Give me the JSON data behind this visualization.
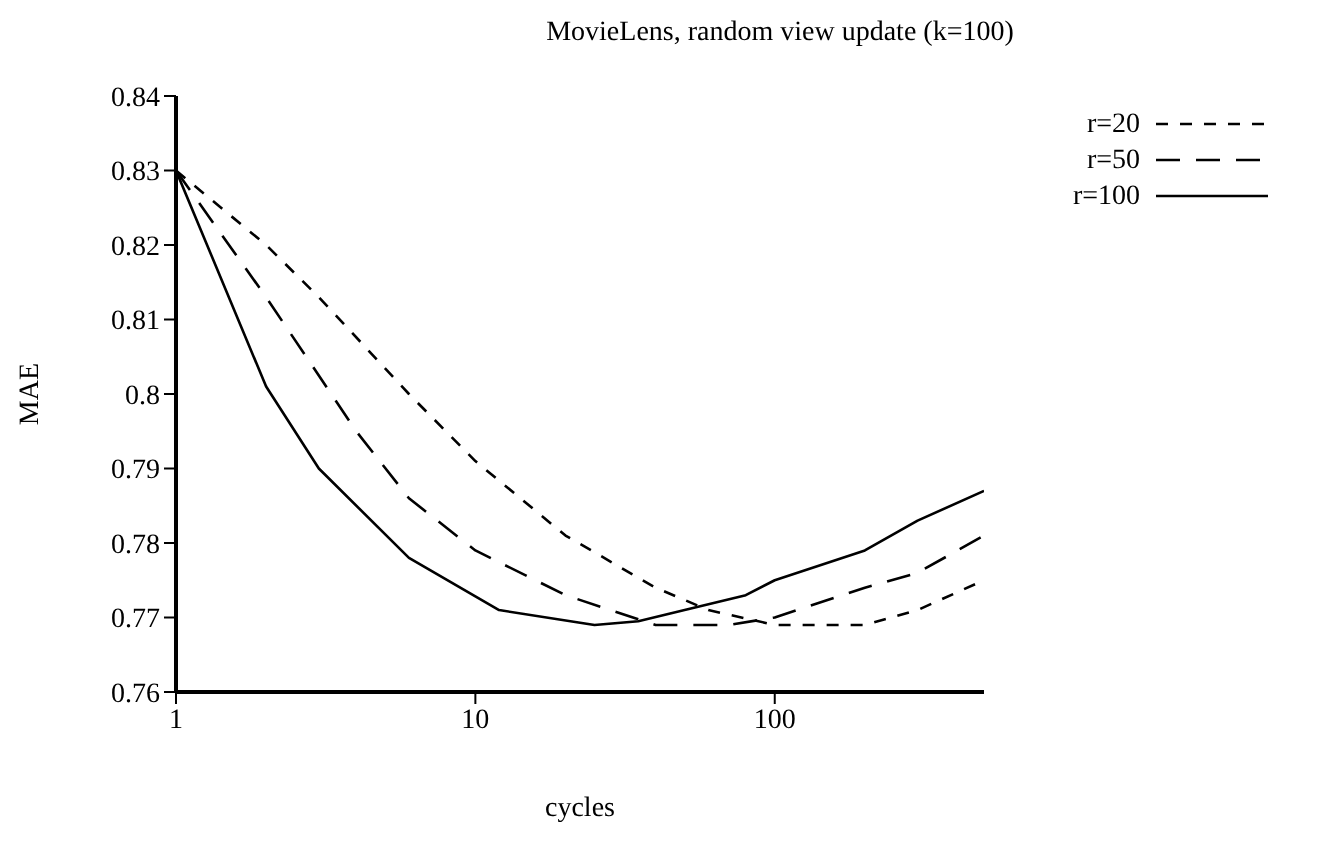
{
  "chart_data": {
    "type": "line",
    "title": "MovieLens, random view update (k=100)",
    "xlabel": "cycles",
    "ylabel": "MAE",
    "log": "x",
    "xlim": [
      1,
      500
    ],
    "xticks": [
      1,
      10,
      100
    ],
    "ylim": [
      0.76,
      0.84
    ],
    "yticks": [
      0.76,
      0.77,
      0.78,
      0.79,
      0.8,
      0.81,
      0.82,
      0.83,
      0.84
    ],
    "grid": false,
    "legend": "top right",
    "marker": "none",
    "series": [
      {
        "name": "r=20",
        "color": "#000000",
        "line_style": "dashed",
        "x": [
          1,
          2,
          3,
          6,
          10,
          20,
          40,
          60,
          100,
          200,
          300,
          500
        ],
        "values": [
          0.83,
          0.82,
          0.813,
          0.8,
          0.791,
          0.781,
          0.774,
          0.771,
          0.769,
          0.769,
          0.771,
          0.775
        ]
      },
      {
        "name": "r=50",
        "color": "#000000",
        "line_style": "longdashed",
        "x": [
          1,
          2,
          4,
          6,
          10,
          20,
          40,
          70,
          100,
          200,
          300,
          500
        ],
        "values": [
          0.83,
          0.813,
          0.795,
          0.786,
          0.779,
          0.773,
          0.769,
          0.769,
          0.77,
          0.774,
          0.776,
          0.781
        ]
      },
      {
        "name": "r=100",
        "color": "#000000",
        "line_style": "solid",
        "x": [
          1,
          2,
          3,
          6,
          12,
          25,
          35,
          50,
          80,
          100,
          200,
          300,
          500
        ],
        "values": [
          0.83,
          0.801,
          0.79,
          0.778,
          0.771,
          0.769,
          0.7695,
          0.771,
          0.773,
          0.775,
          0.779,
          0.783,
          0.787
        ]
      }
    ]
  }
}
